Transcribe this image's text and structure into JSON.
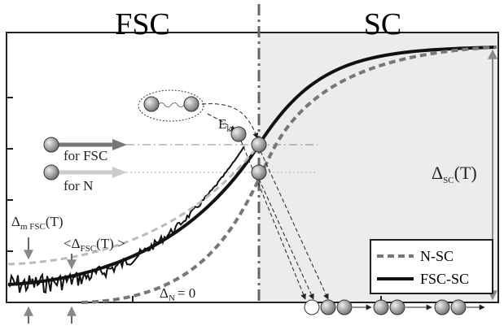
{
  "regions": {
    "left": "FSC",
    "right": "SC"
  },
  "beams": {
    "fsc": "for FSC",
    "n": "for N"
  },
  "energy": {
    "main": "E",
    "sub": "k"
  },
  "delta_sc": {
    "main": "Δ",
    "sub": "SC",
    "tail": "(T)"
  },
  "delta_mfsc": {
    "main": "Δ",
    "sub": "m FSC",
    "tail": "(T)"
  },
  "delta_fsc_avg": {
    "open": "<Δ",
    "sub": "FSC",
    "tail": "(T) >"
  },
  "delta_n": {
    "main": "Δ",
    "sub": "N",
    "tail": "= 0"
  },
  "legend": {
    "n_sc": "N-SC",
    "fsc_sc": "FSC-SC"
  }
}
